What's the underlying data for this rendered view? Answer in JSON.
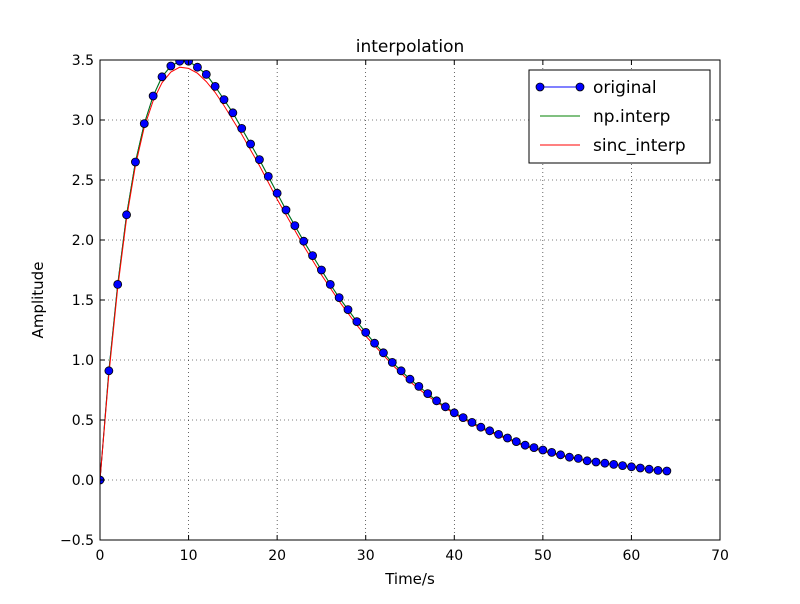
{
  "chart_data": {
    "type": "line",
    "title": "interpolation",
    "xlabel": "Time/s",
    "ylabel": "Amplitude",
    "xlim": [
      0,
      70
    ],
    "ylim": [
      -0.5,
      3.5
    ],
    "xticks": [
      0,
      10,
      20,
      30,
      40,
      50,
      60,
      70
    ],
    "yticks": [
      -0.5,
      0.0,
      0.5,
      1.0,
      1.5,
      2.0,
      2.5,
      3.0,
      3.5
    ],
    "xtick_labels": [
      "0",
      "10",
      "20",
      "30",
      "40",
      "50",
      "60",
      "70"
    ],
    "ytick_labels": [
      "−0.5",
      "0.0",
      "0.5",
      "1.0",
      "1.5",
      "2.0",
      "2.5",
      "3.0",
      "3.5"
    ],
    "grid": true,
    "legend_position": "top-right",
    "series": [
      {
        "name": "original",
        "style": "line-with-markers",
        "color": "#0000ff",
        "x": [
          0,
          1,
          2,
          3,
          4,
          5,
          6,
          7,
          8,
          9,
          10,
          11,
          12,
          13,
          14,
          15,
          16,
          17,
          18,
          19,
          20,
          21,
          22,
          23,
          24,
          25,
          26,
          27,
          28,
          29,
          30,
          31,
          32,
          33,
          34,
          35,
          36,
          37,
          38,
          39,
          40,
          41,
          42,
          43,
          44,
          45,
          46,
          47,
          48,
          49,
          50,
          51,
          52,
          53,
          54,
          55,
          56,
          57,
          58,
          59,
          60,
          61,
          62,
          63,
          64
        ],
        "values": [
          0.0,
          0.91,
          1.63,
          2.21,
          2.65,
          2.97,
          3.2,
          3.36,
          3.45,
          3.49,
          3.49,
          3.44,
          3.38,
          3.28,
          3.17,
          3.06,
          2.93,
          2.8,
          2.67,
          2.53,
          2.39,
          2.25,
          2.12,
          1.99,
          1.87,
          1.75,
          1.63,
          1.52,
          1.42,
          1.32,
          1.23,
          1.14,
          1.06,
          0.98,
          0.91,
          0.84,
          0.78,
          0.72,
          0.66,
          0.61,
          0.56,
          0.52,
          0.48,
          0.44,
          0.41,
          0.38,
          0.35,
          0.32,
          0.29,
          0.27,
          0.25,
          0.23,
          0.21,
          0.19,
          0.18,
          0.16,
          0.15,
          0.14,
          0.13,
          0.12,
          0.11,
          0.1,
          0.09,
          0.08,
          0.075
        ]
      },
      {
        "name": "np.interp",
        "style": "line",
        "color": "#008000",
        "x": [
          0,
          1,
          2,
          3,
          4,
          5,
          6,
          7,
          8,
          9,
          10,
          11,
          12,
          13,
          14,
          15,
          16,
          17,
          18,
          19,
          20,
          21,
          22,
          23,
          24,
          25,
          26,
          27,
          28,
          29,
          30,
          31,
          32,
          33,
          34,
          35,
          36,
          37,
          38,
          39,
          40,
          41,
          42,
          43,
          44,
          45,
          46,
          47,
          48,
          49,
          50,
          51,
          52,
          53,
          54,
          55,
          56,
          57,
          58,
          59,
          60,
          61,
          62,
          63,
          64
        ],
        "values": [
          0.0,
          0.91,
          1.63,
          2.21,
          2.65,
          2.97,
          3.2,
          3.36,
          3.45,
          3.49,
          3.49,
          3.44,
          3.38,
          3.28,
          3.17,
          3.06,
          2.93,
          2.8,
          2.67,
          2.53,
          2.39,
          2.25,
          2.12,
          1.99,
          1.87,
          1.75,
          1.63,
          1.52,
          1.42,
          1.32,
          1.23,
          1.14,
          1.06,
          0.98,
          0.91,
          0.84,
          0.78,
          0.72,
          0.66,
          0.61,
          0.56,
          0.52,
          0.48,
          0.44,
          0.41,
          0.38,
          0.35,
          0.32,
          0.29,
          0.27,
          0.25,
          0.23,
          0.21,
          0.19,
          0.18,
          0.16,
          0.15,
          0.14,
          0.13,
          0.12,
          0.11,
          0.1,
          0.09,
          0.08,
          0.075
        ]
      },
      {
        "name": "sinc_interp",
        "style": "line",
        "color": "#ff0000",
        "x": [
          0,
          1,
          2,
          3,
          4,
          5,
          6,
          7,
          8,
          9,
          10,
          11,
          12,
          13,
          14,
          15,
          16,
          17,
          18,
          19,
          20,
          21,
          22,
          23,
          24,
          25,
          26,
          27,
          28,
          29,
          30,
          31,
          32,
          33,
          34,
          35,
          36,
          37,
          38,
          39,
          40,
          41,
          42,
          43,
          44,
          45,
          46,
          47,
          48,
          49,
          50,
          51,
          52,
          53,
          54,
          55,
          56,
          57,
          58,
          59,
          60,
          61,
          62,
          63,
          64
        ],
        "values": [
          0.0,
          0.88,
          1.6,
          2.18,
          2.62,
          2.94,
          3.16,
          3.31,
          3.4,
          3.44,
          3.43,
          3.39,
          3.32,
          3.23,
          3.12,
          3.0,
          2.88,
          2.75,
          2.62,
          2.48,
          2.34,
          2.21,
          2.08,
          1.95,
          1.83,
          1.71,
          1.6,
          1.49,
          1.39,
          1.29,
          1.2,
          1.12,
          1.04,
          0.96,
          0.89,
          0.82,
          0.76,
          0.7,
          0.65,
          0.6,
          0.55,
          0.51,
          0.47,
          0.43,
          0.4,
          0.37,
          0.34,
          0.31,
          0.28,
          0.26,
          0.24,
          0.22,
          0.2,
          0.19,
          0.17,
          0.16,
          0.15,
          0.14,
          0.13,
          0.12,
          0.11,
          0.1,
          0.09,
          0.08,
          0.07
        ]
      }
    ]
  }
}
